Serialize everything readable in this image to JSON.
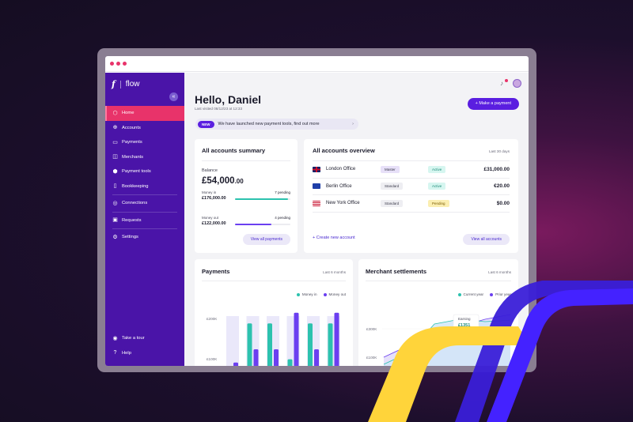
{
  "app": {
    "brand_mark": "f",
    "brand_name": "flow"
  },
  "sidebar": {
    "items": [
      {
        "label": "Home",
        "icon": "home-icon",
        "glyph": "⬡"
      },
      {
        "label": "Accounts",
        "icon": "accounts-icon",
        "glyph": "⊕"
      },
      {
        "label": "Payments",
        "icon": "payments-icon",
        "glyph": "▭"
      },
      {
        "label": "Merchants",
        "icon": "merchants-icon",
        "glyph": "◫"
      },
      {
        "label": "Payment tools",
        "icon": "payment-tools-icon",
        "glyph": "⬢"
      },
      {
        "label": "Bookkeeping",
        "icon": "bookkeeping-icon",
        "glyph": "▯"
      },
      {
        "label": "Connections",
        "icon": "connections-icon",
        "glyph": "◎"
      },
      {
        "label": "Requests",
        "icon": "requests-icon",
        "glyph": "▣"
      },
      {
        "label": "Settings",
        "icon": "settings-icon",
        "glyph": "⚙"
      }
    ],
    "bottom": [
      {
        "label": "Take a tour",
        "icon": "eye-icon",
        "glyph": "◉"
      },
      {
        "label": "Help",
        "icon": "help-icon",
        "glyph": "?"
      }
    ]
  },
  "header": {
    "greeting": "Hello, Daniel",
    "last_visited": "Last visited 08/12/23 at 12:33",
    "make_payment": "+ Make a payment"
  },
  "banner": {
    "badge": "NEW",
    "text": "We have launched new payment tools, find out more",
    "chevron": "›"
  },
  "summary": {
    "title": "All accounts summary",
    "balance_label": "Balance",
    "balance_main": "£54,000",
    "balance_cents": ".00",
    "money_in_label": "Money in",
    "money_in_value": "£176,000.00",
    "money_in_pending": "7 pending",
    "money_in_fill": 0.95,
    "money_out_label": "Money out",
    "money_out_value": "£122,000.00",
    "money_out_pending": "4 pending",
    "money_out_fill": 0.66,
    "view_all": "View all payments"
  },
  "overview": {
    "title": "All accounts overview",
    "period": "Last 30 days",
    "accounts": [
      {
        "name": "London Office",
        "type": "Master",
        "status": "Active",
        "amount": "£31,000.00",
        "flag": "uk"
      },
      {
        "name": "Berlin Office",
        "type": "Standard",
        "status": "Active",
        "amount": "€20.00",
        "flag": "eu"
      },
      {
        "name": "New York Office",
        "type": "Standard",
        "status": "Pending",
        "amount": "$0.00",
        "flag": "us"
      }
    ],
    "create": "+ Create new account",
    "view_all": "View all accounts"
  },
  "payments": {
    "title": "Payments",
    "period": "Last 6 months",
    "legend_in": "Money in",
    "legend_out": "Money out"
  },
  "merchant": {
    "title": "Merchant settlements",
    "period": "Last 6 months",
    "legend_current": "Current year",
    "legend_prior": "Prior year",
    "tooltip_label": "Earning",
    "tooltip_value": "£1351"
  },
  "colors": {
    "teal": "#2cc2ae",
    "purple": "#6b3ff0",
    "active_bg": "#d6f6f0",
    "active_fg": "#1c8a78",
    "pending_bg": "#fbeeb0",
    "pending_fg": "#7a5a00"
  },
  "chart_data": [
    {
      "type": "bar",
      "title": "Payments",
      "series": [
        {
          "name": "Money in",
          "values": [
            48,
            178,
            178,
            70,
            178,
            178
          ]
        },
        {
          "name": "Money out",
          "values": [
            60,
            100,
            100,
            210,
            100,
            210
          ]
        }
      ],
      "yticks": [
        "£200K",
        "£100K"
      ],
      "ylim": [
        0,
        250
      ]
    },
    {
      "type": "area",
      "title": "Merchant settlements",
      "series": [
        {
          "name": "Current year",
          "values": [
            45,
            70,
            130,
            140,
            135,
            138
          ]
        },
        {
          "name": "Prior year",
          "values": [
            60,
            85,
            110,
            125,
            140,
            150
          ]
        }
      ],
      "yticks": [
        "£300K",
        "£100K"
      ],
      "annotation": {
        "label": "Earning",
        "value": "£1351"
      }
    }
  ]
}
